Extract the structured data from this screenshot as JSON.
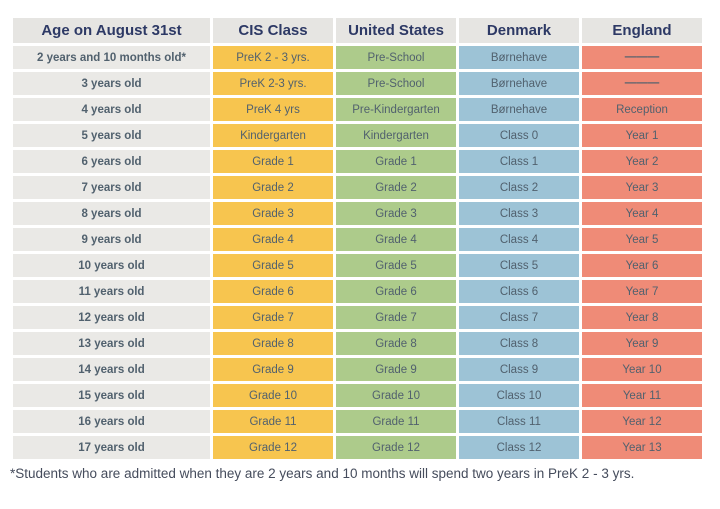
{
  "colors": {
    "header_bg": "#e6e5e2",
    "age_bg": "#eae9e6",
    "cis_bg": "#f7c54f",
    "us_bg": "#adcb8b",
    "denmark_bg": "#9dc3d6",
    "england_bg": "#ef8b77",
    "header_text": "#2d3965",
    "age_text": "#3c4662",
    "cell_text": "#51616e",
    "dash_color": "#7d6160",
    "footnote_text": "#454c5c"
  },
  "table": {
    "columns": [
      {
        "key": "age",
        "label": "Age on August 31st"
      },
      {
        "key": "cis",
        "label": "CIS Class"
      },
      {
        "key": "us",
        "label": "United States"
      },
      {
        "key": "denmark",
        "label": "Denmark"
      },
      {
        "key": "england",
        "label": "England"
      }
    ],
    "rows": [
      [
        "2 years and 10 months old*",
        "PreK 2 - 3 yrs.",
        "Pre-School",
        "Børnehave",
        "———"
      ],
      [
        "3 years old",
        "PreK 2-3 yrs.",
        "Pre-School",
        "Børnehave",
        "———"
      ],
      [
        "4 years old",
        "PreK 4 yrs",
        "Pre-Kindergarten",
        "Børnehave",
        "Reception"
      ],
      [
        "5 years old",
        "Kindergarten",
        "Kindergarten",
        "Class 0",
        "Year 1"
      ],
      [
        "6 years old",
        "Grade 1",
        "Grade 1",
        "Class 1",
        "Year 2"
      ],
      [
        "7 years old",
        "Grade 2",
        "Grade 2",
        "Class 2",
        "Year 3"
      ],
      [
        "8 years old",
        "Grade 3",
        "Grade 3",
        "Class 3",
        "Year 4"
      ],
      [
        "9 years old",
        "Grade 4",
        "Grade 4",
        "Class 4",
        "Year 5"
      ],
      [
        "10 years old",
        "Grade 5",
        "Grade 5",
        "Class 5",
        "Year 6"
      ],
      [
        "11 years old",
        "Grade 6",
        "Grade 6",
        "Class 6",
        "Year 7"
      ],
      [
        "12 years old",
        "Grade 7",
        "Grade 7",
        "Class 7",
        "Year 8"
      ],
      [
        "13 years old",
        "Grade 8",
        "Grade 8",
        "Class 8",
        "Year 9"
      ],
      [
        "14 years old",
        "Grade 9",
        "Grade 9",
        "Class 9",
        "Year 10"
      ],
      [
        "15 years old",
        "Grade 10",
        "Grade 10",
        "Class 10",
        "Year 11"
      ],
      [
        "16 years old",
        "Grade 11",
        "Grade 11",
        "Class 11",
        "Year 12"
      ],
      [
        "17 years old",
        "Grade 12",
        "Grade 12",
        "Class 12",
        "Year 13"
      ]
    ]
  },
  "footnote": "*Students who are admitted when they are 2 years and 10 months will spend two years in PreK 2 - 3 yrs."
}
